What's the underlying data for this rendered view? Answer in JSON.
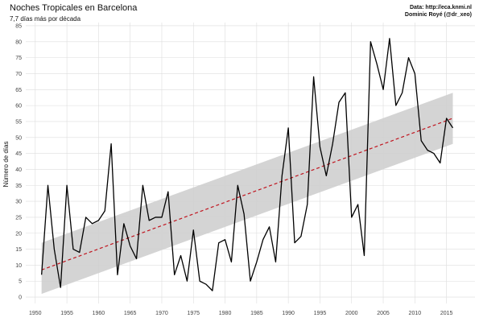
{
  "chart_data": {
    "type": "line",
    "title": "Noches Tropicales en Barcelona",
    "subtitle": "7,7 días más por década",
    "caption_lines": [
      "Data: http://eca.knmi.nl",
      "Dominic Royé (@dr_xeo)"
    ],
    "xlabel": "",
    "ylabel": "Número de días",
    "xlim": [
      1948.5,
      2019.5
    ],
    "ylim": [
      -2,
      86
    ],
    "x_ticks": [
      1950,
      1955,
      1960,
      1965,
      1970,
      1975,
      1980,
      1985,
      1990,
      1995,
      2000,
      2005,
      2010,
      2015
    ],
    "y_ticks": [
      0,
      5,
      10,
      15,
      20,
      25,
      30,
      35,
      40,
      45,
      50,
      55,
      60,
      65,
      70,
      75,
      80,
      85
    ],
    "grid": true,
    "series": [
      {
        "x": [
          1951,
          1952,
          1953,
          1954,
          1955,
          1956,
          1957,
          1958,
          1959,
          1960,
          1961,
          1962,
          1963,
          1964,
          1965,
          1966,
          1967,
          1968,
          1969,
          1970,
          1971,
          1972,
          1973,
          1974,
          1975,
          1976,
          1977,
          1978,
          1979,
          1980,
          1981,
          1982,
          1983,
          1984,
          1985,
          1986,
          1987,
          1988,
          1989,
          1990,
          1991,
          1992,
          1993,
          1994,
          1995,
          1996,
          1997,
          1998,
          1999,
          2000,
          2001,
          2002,
          2003,
          2004,
          2005,
          2006,
          2007,
          2008,
          2009,
          2010,
          2011,
          2012,
          2013,
          2014,
          2015,
          2016
        ],
        "values": [
          7,
          35,
          15,
          3,
          35,
          15,
          14,
          25,
          23,
          24,
          27,
          48,
          7,
          23,
          16,
          12,
          35,
          24,
          25,
          25,
          33,
          7,
          13,
          5,
          21,
          5,
          4,
          2,
          17,
          18,
          11,
          35,
          26,
          5,
          11,
          18,
          22,
          11,
          38,
          53,
          17,
          19,
          29,
          69,
          47,
          38,
          48,
          61,
          64,
          25,
          29,
          13,
          80,
          73,
          65,
          81,
          60,
          64,
          75,
          70,
          49,
          46,
          45,
          42,
          56,
          53
        ],
        "color": "#000000"
      }
    ],
    "trend": {
      "x": [
        1951,
        2016
      ],
      "values": [
        8.5,
        56
      ],
      "ci_lower": [
        1,
        48
      ],
      "ci_upper": [
        17,
        64
      ],
      "line_color": "#c0141e",
      "band_color": "#cfcfcf"
    }
  }
}
